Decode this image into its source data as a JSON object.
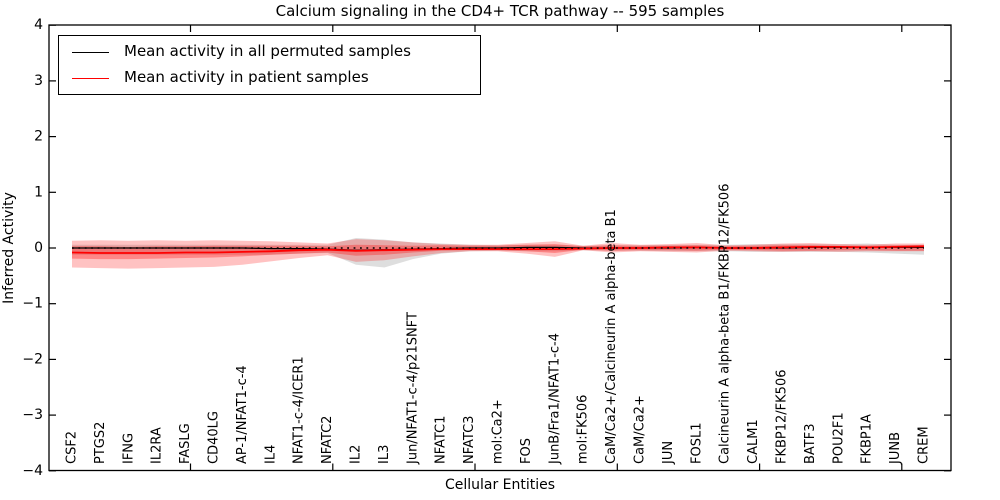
{
  "figure": {
    "background": "#ffffff"
  },
  "header": {
    "title": "Calcium signaling in the CD4+ TCR pathway -- 595 samples"
  },
  "axes": {
    "y_label": "Inferred Activity",
    "x_label": "Cellular Entities"
  },
  "legend": {
    "entries": [
      {
        "label": "Mean activity in all permuted samples",
        "color": "#000000"
      },
      {
        "label": "Mean activity in patient samples",
        "color": "#ff0000"
      }
    ]
  },
  "chart_data": {
    "type": "line",
    "title": "Calcium signaling in the CD4+ TCR pathway -- 595 samples",
    "xlabel": "Cellular Entities",
    "ylabel": "Inferred Activity",
    "ylim": [
      -4,
      4
    ],
    "grid": false,
    "legend_position": "upper left",
    "yticks": [
      {
        "value": 4,
        "label": "4"
      },
      {
        "value": 3,
        "label": "3"
      },
      {
        "value": 2,
        "label": "2"
      },
      {
        "value": 1,
        "label": "1"
      },
      {
        "value": 0,
        "label": "0"
      },
      {
        "value": -1,
        "label": "−1"
      },
      {
        "value": -2,
        "label": "−2"
      },
      {
        "value": -3,
        "label": "−3"
      },
      {
        "value": -4,
        "label": "−4"
      }
    ],
    "categories": [
      "CSF2",
      "PTGS2",
      "IFNG",
      "IL2RA",
      "FASLG",
      "CD40LG",
      "AP-1/NFAT1-c-4",
      "IL4",
      "NFAT1-c-4/ICER1",
      "NFATC2",
      "IL2",
      "IL3",
      "Jun/NFAT1-c-4/p21SNFT",
      "NFATC1",
      "NFATC3",
      "mol:Ca2+",
      "FOS",
      "JunB/Fra1/NFAT1-c-4",
      "mol:FK506",
      "CaM/Ca2+/Calcineurin A alpha-beta B1",
      "CaM/Ca2+",
      "JUN",
      "FOSL1",
      "Calcineurin A alpha-beta B1/FKBP12/FK506",
      "CALM1",
      "FKBP12/FK506",
      "BATF3",
      "POU2F1",
      "FKBP1A",
      "JUNB",
      "CREM"
    ],
    "series": [
      {
        "id": "permuted",
        "name": "Mean activity in all permuted samples",
        "color": "#000000",
        "values": [
          0,
          0,
          0,
          0,
          0,
          0,
          0,
          -0.01,
          -0.01,
          -0.02,
          -0.04,
          -0.03,
          -0.02,
          -0.01,
          0,
          0,
          0.01,
          0.01,
          0,
          0,
          0,
          0,
          0.01,
          0,
          0,
          0,
          0.01,
          0.01,
          0.01,
          0.01,
          0.01
        ]
      },
      {
        "id": "patient",
        "name": "Mean activity in patient samples",
        "color": "#ff0000",
        "values": [
          -0.08,
          -0.09,
          -0.09,
          -0.09,
          -0.08,
          -0.08,
          -0.07,
          -0.06,
          -0.04,
          -0.03,
          -0.05,
          -0.04,
          -0.03,
          -0.02,
          -0.02,
          -0.02,
          -0.02,
          -0.02,
          -0.01,
          0,
          0,
          0.01,
          0.01,
          0,
          0,
          0.01,
          0.02,
          0.02,
          0.01,
          0.02,
          0.03
        ]
      }
    ],
    "bands": [
      {
        "name": "permuted-range",
        "color": "rgba(0,0,0,0.13)",
        "upper": [
          0.06,
          0.06,
          0.06,
          0.06,
          0.06,
          0.06,
          0.06,
          0.06,
          0.06,
          0.06,
          0.18,
          0.15,
          0.1,
          0.08,
          0.06,
          0.05,
          0.06,
          0.06,
          0.04,
          0.05,
          0.05,
          0.06,
          0.06,
          0.06,
          0.07,
          0.07,
          0.07,
          0.07,
          0.08,
          0.06,
          0.06
        ],
        "lower": [
          -0.12,
          -0.12,
          -0.12,
          -0.12,
          -0.12,
          -0.12,
          -0.12,
          -0.12,
          -0.1,
          -0.09,
          -0.3,
          -0.35,
          -0.2,
          -0.1,
          -0.06,
          -0.05,
          -0.06,
          -0.06,
          -0.04,
          -0.05,
          -0.05,
          -0.06,
          -0.06,
          -0.06,
          -0.07,
          -0.07,
          -0.07,
          -0.07,
          -0.08,
          -0.1,
          -0.12
        ]
      },
      {
        "name": "patient-outer",
        "color": "rgba(255,0,0,0.24)",
        "upper": [
          0.13,
          0.14,
          0.13,
          0.14,
          0.13,
          0.14,
          0.13,
          0.12,
          0.1,
          0.08,
          0.16,
          0.14,
          0.1,
          0.07,
          0.06,
          0.06,
          0.09,
          0.12,
          0.04,
          0.09,
          0.06,
          0.07,
          0.09,
          0.05,
          0.06,
          0.08,
          0.09,
          0.07,
          0.06,
          0.08,
          0.08
        ],
        "lower": [
          -0.35,
          -0.36,
          -0.37,
          -0.36,
          -0.35,
          -0.34,
          -0.3,
          -0.24,
          -0.18,
          -0.13,
          -0.25,
          -0.22,
          -0.15,
          -0.09,
          -0.06,
          -0.06,
          -0.1,
          -0.16,
          -0.04,
          -0.08,
          -0.06,
          -0.07,
          -0.08,
          -0.05,
          -0.06,
          -0.07,
          -0.06,
          -0.07,
          -0.06,
          -0.06,
          -0.06
        ]
      },
      {
        "name": "patient-inner",
        "color": "rgba(255,0,0,0.30)",
        "upper": [
          0.03,
          0.03,
          0.02,
          0.03,
          0.03,
          0.04,
          0.04,
          0.04,
          0.04,
          0.03,
          0.06,
          0.05,
          0.04,
          0.05,
          0.04,
          0.04,
          0.06,
          0.07,
          0.03,
          0.05,
          0.04,
          0.04,
          0.05,
          0.03,
          0.04,
          0.05,
          0.05,
          0.04,
          0.04,
          0.05,
          0.05
        ],
        "lower": [
          -0.19,
          -0.2,
          -0.2,
          -0.19,
          -0.18,
          -0.17,
          -0.15,
          -0.12,
          -0.1,
          -0.08,
          -0.14,
          -0.12,
          -0.08,
          -0.05,
          -0.04,
          -0.04,
          -0.06,
          -0.09,
          -0.03,
          -0.05,
          -0.04,
          -0.04,
          -0.05,
          -0.03,
          -0.04,
          -0.05,
          -0.05,
          -0.04,
          -0.04,
          -0.05,
          -0.05
        ]
      }
    ],
    "zero_line": {
      "y": 0,
      "style": "dotted",
      "color": "#000000"
    }
  }
}
